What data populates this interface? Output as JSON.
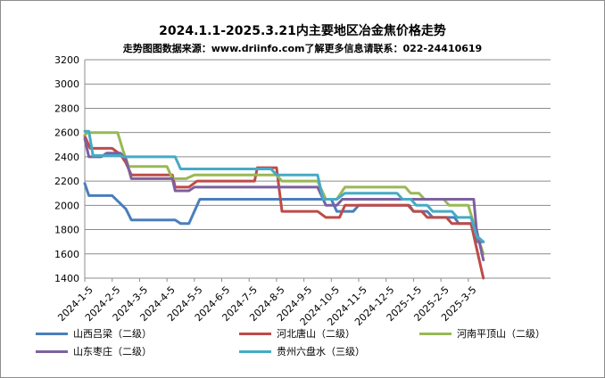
{
  "chart_data": {
    "type": "line",
    "title": "2024.1.1-2025.3.21内主要地区冶金焦价格走势",
    "subtitle": "走势图图数据来源：www.driinfo.com了解更多信息请联系：022-24410619",
    "xlabel": "",
    "ylabel": "",
    "ylim": [
      1400,
      3200
    ],
    "yticks": [
      1400,
      1600,
      1800,
      2000,
      2200,
      2400,
      2600,
      2800,
      3000,
      3200
    ],
    "xticks": [
      "2024-1-5",
      "2024-2-5",
      "2024-3-5",
      "2024-4-5",
      "2024-5-5",
      "2024-6-5",
      "2024-7-5",
      "2024-8-5",
      "2024-9-5",
      "2024-10-5",
      "2024-11-5",
      "2024-12-5",
      "2025-1-5",
      "2025-2-5",
      "2025-3-5"
    ],
    "grid": "horizontal",
    "legend": "bottom",
    "series": [
      {
        "name": "山西吕梁（二级）",
        "color": "#4a7ebb",
        "values": [
          [
            0,
            2180
          ],
          [
            0.15,
            2080
          ],
          [
            1,
            2080
          ],
          [
            1.5,
            1970
          ],
          [
            1.7,
            1880
          ],
          [
            2.5,
            1880
          ],
          [
            3.3,
            1880
          ],
          [
            3.5,
            1850
          ],
          [
            3.8,
            1850
          ],
          [
            4,
            1950
          ],
          [
            4.2,
            2050
          ],
          [
            9,
            2050
          ],
          [
            9.2,
            1950
          ],
          [
            9.8,
            1950
          ],
          [
            10,
            2000
          ],
          [
            11,
            2000
          ],
          [
            11.85,
            2000
          ],
          [
            12,
            1950
          ],
          [
            12.5,
            1950
          ],
          [
            12.7,
            1900
          ],
          [
            13,
            1900
          ],
          [
            13.5,
            1900
          ],
          [
            13.65,
            1850
          ],
          [
            14.1,
            1850
          ],
          [
            14.3,
            1700
          ],
          [
            14.55,
            1700
          ]
        ]
      },
      {
        "name": "河北唐山（二级）",
        "color": "#be4b48",
        "values": [
          [
            0,
            2570
          ],
          [
            0.2,
            2470
          ],
          [
            1,
            2470
          ],
          [
            1.3,
            2420
          ],
          [
            1.5,
            2350
          ],
          [
            1.7,
            2250
          ],
          [
            2.5,
            2250
          ],
          [
            3.2,
            2250
          ],
          [
            3.3,
            2150
          ],
          [
            3.8,
            2150
          ],
          [
            4.1,
            2200
          ],
          [
            4.5,
            2200
          ],
          [
            5,
            2200
          ],
          [
            6.2,
            2200
          ],
          [
            6.3,
            2310
          ],
          [
            6.8,
            2310
          ],
          [
            7,
            2310
          ],
          [
            7.2,
            1950
          ],
          [
            7.5,
            1950
          ],
          [
            8.5,
            1950
          ],
          [
            8.8,
            1900
          ],
          [
            9.3,
            1900
          ],
          [
            9.5,
            2000
          ],
          [
            11.8,
            2000
          ],
          [
            12,
            1950
          ],
          [
            12.3,
            1950
          ],
          [
            12.5,
            1900
          ],
          [
            13.2,
            1900
          ],
          [
            13.4,
            1850
          ],
          [
            14.1,
            1850
          ],
          [
            14.3,
            1650
          ],
          [
            14.55,
            1400
          ]
        ]
      },
      {
        "name": "河南平顶山（二级）",
        "color": "#98b954",
        "values": [
          [
            0,
            2580
          ],
          [
            0.1,
            2600
          ],
          [
            1.2,
            2600
          ],
          [
            1.4,
            2450
          ],
          [
            1.6,
            2320
          ],
          [
            3,
            2320
          ],
          [
            3.2,
            2220
          ],
          [
            3.7,
            2220
          ],
          [
            4,
            2250
          ],
          [
            6.2,
            2250
          ],
          [
            6.3,
            2250
          ],
          [
            7,
            2250
          ],
          [
            7.2,
            2200
          ],
          [
            8.5,
            2200
          ],
          [
            8.8,
            2050
          ],
          [
            9.2,
            2050
          ],
          [
            9.5,
            2150
          ],
          [
            11.7,
            2150
          ],
          [
            11.9,
            2100
          ],
          [
            12.2,
            2100
          ],
          [
            12.4,
            2050
          ],
          [
            13.1,
            2050
          ],
          [
            13.3,
            2000
          ],
          [
            14,
            2000
          ],
          [
            14.2,
            1850
          ],
          [
            14.4,
            1700
          ],
          [
            14.55,
            1600
          ]
        ]
      },
      {
        "name": "山东枣庄（二级）",
        "color": "#7d60a0",
        "values": [
          [
            0,
            2550
          ],
          [
            0.15,
            2400
          ],
          [
            0.6,
            2400
          ],
          [
            0.8,
            2430
          ],
          [
            1.3,
            2430
          ],
          [
            1.5,
            2380
          ],
          [
            1.7,
            2220
          ],
          [
            3.2,
            2220
          ],
          [
            3.3,
            2120
          ],
          [
            3.8,
            2120
          ],
          [
            4,
            2150
          ],
          [
            8.5,
            2150
          ],
          [
            8.8,
            2000
          ],
          [
            9.2,
            2000
          ],
          [
            9.4,
            2050
          ],
          [
            14.2,
            2050
          ],
          [
            14.3,
            1800
          ],
          [
            14.55,
            1550
          ]
        ]
      },
      {
        "name": "贵州六盘水（三级）",
        "color": "#46aac5",
        "values": [
          [
            0,
            2610
          ],
          [
            0.15,
            2610
          ],
          [
            0.3,
            2410
          ],
          [
            1,
            2410
          ],
          [
            1.3,
            2410
          ],
          [
            1.4,
            2400
          ],
          [
            3.3,
            2400
          ],
          [
            3.5,
            2300
          ],
          [
            4,
            2300
          ],
          [
            6.8,
            2300
          ],
          [
            7,
            2250
          ],
          [
            7.5,
            2250
          ],
          [
            8.5,
            2250
          ],
          [
            8.7,
            2050
          ],
          [
            9.2,
            2050
          ],
          [
            9.5,
            2100
          ],
          [
            10.5,
            2100
          ],
          [
            11.4,
            2100
          ],
          [
            11.6,
            2050
          ],
          [
            11.9,
            2050
          ],
          [
            12.1,
            2000
          ],
          [
            12.5,
            2000
          ],
          [
            12.7,
            1950
          ],
          [
            13.4,
            1950
          ],
          [
            13.6,
            1900
          ],
          [
            14.1,
            1900
          ],
          [
            14.3,
            1750
          ],
          [
            14.55,
            1700
          ]
        ]
      }
    ]
  }
}
